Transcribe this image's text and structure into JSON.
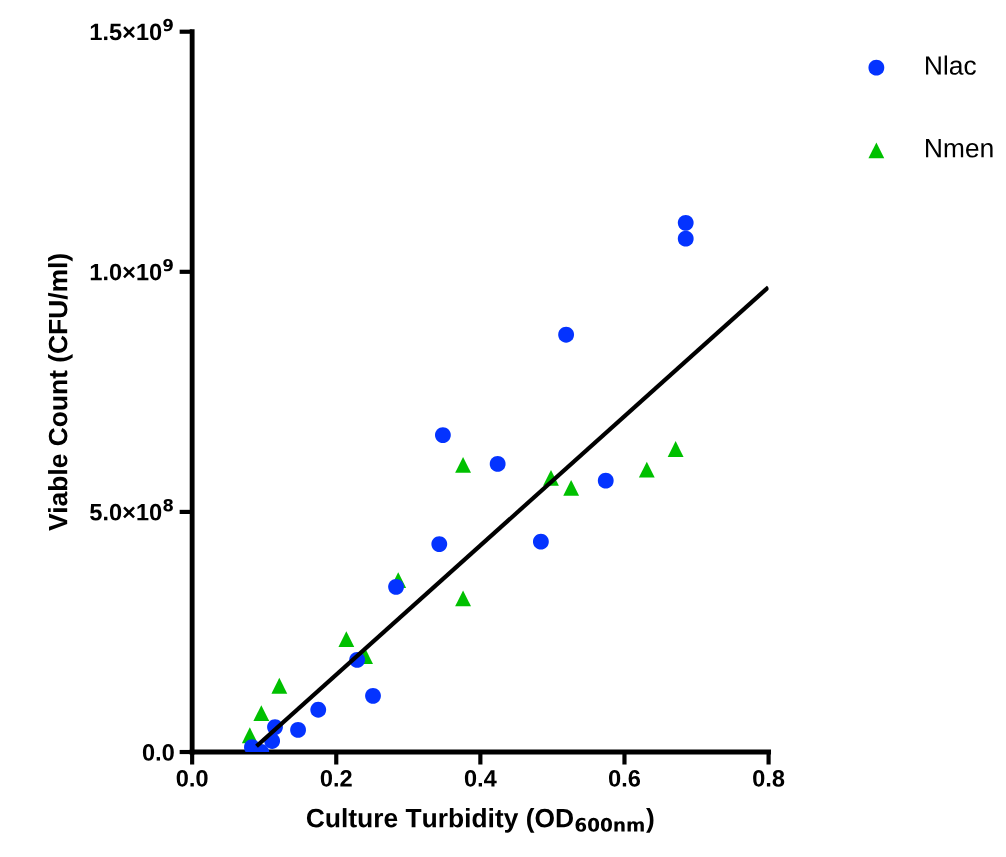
{
  "chart_data": {
    "type": "scatter",
    "xlabel": "Culture Turbidity (OD$_{600nm}$)",
    "ylabel": "Viable Count (CFU/ml)",
    "xlim": [
      0,
      0.8
    ],
    "xticks": [
      {
        "value": 0,
        "label": "0.0"
      },
      0.2,
      0.4,
      0.6,
      0.8
    ],
    "ylim": [
      0,
      1500000000
    ],
    "yticks": [
      {
        "value": 0,
        "label": "0.0"
      },
      {
        "value": 500000000,
        "label": "5.0×10$^{8}$"
      },
      {
        "value": 1000000000,
        "label": "1.0×10$^{9}$"
      },
      {
        "value": 1500000000,
        "label": "1.5×10$^{9}$"
      }
    ],
    "grid": false,
    "legend": "top right",
    "series": [
      {
        "name": "Nlac",
        "color": "#0433ff",
        "marker": "circle",
        "x": [
          0.083,
          0.096,
          0.111,
          0.115,
          0.147,
          0.175,
          0.229,
          0.251,
          0.283,
          0.343,
          0.348,
          0.424,
          0.484,
          0.519,
          0.574,
          0.685,
          0.685
        ],
        "values": [
          10000000,
          0,
          23000000,
          52000000,
          46000000,
          88000000,
          192000000,
          117000000,
          344000000,
          433000000,
          660000000,
          600000000,
          438000000,
          869000000,
          565000000,
          1069000000,
          1102000000
        ]
      },
      {
        "name": "Nmen",
        "color": "#00c000",
        "marker": "triangle",
        "x": [
          0.08,
          0.096,
          0.121,
          0.214,
          0.24,
          0.286,
          0.376,
          0.376,
          0.498,
          0.526,
          0.631,
          0.671
        ],
        "values": [
          35000000,
          81000000,
          138000000,
          235000000,
          200000000,
          358000000,
          598000000,
          320000000,
          571000000,
          550000000,
          588000000,
          631000000
        ]
      },
      {
        "type": "line",
        "color": "#000000",
        "marker": "none",
        "line_style": "solid",
        "x": [
          0.0915,
          0.7975
        ],
        "values": [
          15000000,
          965000000
        ]
      }
    ]
  }
}
